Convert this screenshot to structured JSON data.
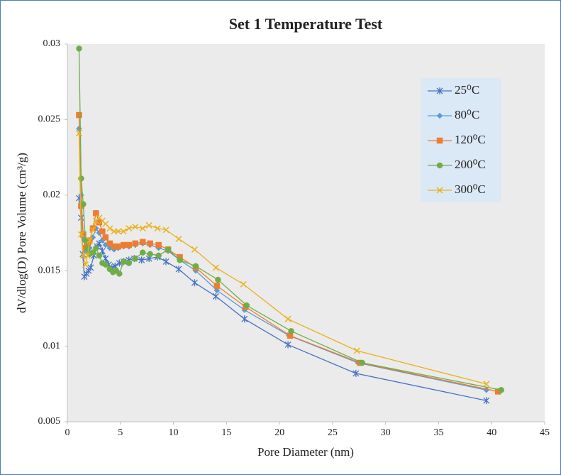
{
  "chart_data": {
    "type": "line",
    "title": "Set 1 Temperature Test",
    "x_label": "Pore Diameter (nm)",
    "y_label": "dV/dlog(D) Pore Volume (cm³/g)",
    "xlim": [
      0,
      45
    ],
    "xticks": [
      0,
      5,
      10,
      15,
      20,
      25,
      30,
      35,
      40,
      45
    ],
    "ylim": [
      0.005,
      0.03
    ],
    "yticks": [
      0.005,
      0.01,
      0.015,
      0.02,
      0.025,
      0.03
    ],
    "grid": false,
    "legend": "upper right",
    "series": [
      {
        "name": "25⁰C",
        "color": "#4472c4",
        "marker": "asterisk",
        "x": [
          1.1,
          1.3,
          1.45,
          1.6,
          1.8,
          2.0,
          2.2,
          2.5,
          2.8,
          3.0,
          3.3,
          3.6,
          3.9,
          4.2,
          4.5,
          4.9,
          5.3,
          5.8,
          6.3,
          7.0,
          7.7,
          8.5,
          9.3,
          10.5,
          12.0,
          14.0,
          16.7,
          20.8,
          27.2,
          39.5
        ],
        "values": [
          0.0198,
          0.0185,
          0.0161,
          0.0146,
          0.0148,
          0.015,
          0.0152,
          0.016,
          0.0166,
          0.0168,
          0.0163,
          0.0158,
          0.0154,
          0.0152,
          0.0153,
          0.0155,
          0.0156,
          0.0157,
          0.0158,
          0.0157,
          0.0158,
          0.0159,
          0.0156,
          0.0151,
          0.0142,
          0.0133,
          0.0118,
          0.0101,
          0.0082,
          0.0064
        ]
      },
      {
        "name": "80⁰C",
        "color": "#5b9bd5",
        "marker": "diamond",
        "x": [
          1.1,
          1.3,
          1.5,
          1.7,
          1.9,
          2.1,
          2.4,
          2.7,
          3.0,
          3.3,
          3.6,
          4.0,
          4.4,
          4.8,
          5.3,
          5.8,
          6.4,
          7.1,
          7.8,
          8.6,
          9.5,
          10.6,
          12.1,
          14.1,
          16.7,
          20.9,
          27.4,
          39.5
        ],
        "values": [
          0.0244,
          0.02,
          0.0172,
          0.0163,
          0.0163,
          0.0165,
          0.0172,
          0.0178,
          0.0175,
          0.017,
          0.0167,
          0.0165,
          0.0164,
          0.0165,
          0.0166,
          0.0166,
          0.0167,
          0.0168,
          0.0167,
          0.0165,
          0.0163,
          0.0157,
          0.015,
          0.0137,
          0.0124,
          0.0107,
          0.0089,
          0.0071
        ]
      },
      {
        "name": "120⁰C",
        "color": "#ed7d31",
        "marker": "square",
        "x": [
          1.1,
          1.3,
          1.5,
          1.7,
          1.9,
          2.1,
          2.4,
          2.7,
          3.0,
          3.3,
          3.6,
          4.0,
          4.4,
          4.8,
          5.3,
          5.8,
          6.4,
          7.1,
          7.8,
          8.6,
          9.5,
          10.6,
          12.1,
          14.1,
          16.8,
          21.0,
          27.6,
          40.6
        ],
        "values": [
          0.0253,
          0.0193,
          0.0174,
          0.0165,
          0.0167,
          0.017,
          0.0178,
          0.0188,
          0.0182,
          0.0176,
          0.0172,
          0.0168,
          0.0166,
          0.0166,
          0.0167,
          0.0167,
          0.0168,
          0.0169,
          0.0168,
          0.0167,
          0.0164,
          0.0159,
          0.0152,
          0.014,
          0.0126,
          0.0107,
          0.0089,
          0.007
        ]
      },
      {
        "name": "200⁰C",
        "color": "#70ad47",
        "marker": "circle",
        "x": [
          1.1,
          1.3,
          1.5,
          1.7,
          1.9,
          2.1,
          2.4,
          2.7,
          3.0,
          3.3,
          3.6,
          4.0,
          4.3,
          4.6,
          4.9,
          5.3,
          5.8,
          6.4,
          7.1,
          7.8,
          8.6,
          9.5,
          10.6,
          12.1,
          14.2,
          16.9,
          21.1,
          27.8,
          40.9
        ],
        "values": [
          0.0297,
          0.0211,
          0.0194,
          0.017,
          0.0165,
          0.0161,
          0.0162,
          0.0165,
          0.016,
          0.0155,
          0.0154,
          0.0151,
          0.0149,
          0.015,
          0.0148,
          0.0156,
          0.0155,
          0.0158,
          0.0162,
          0.0161,
          0.016,
          0.0164,
          0.0157,
          0.0153,
          0.0144,
          0.0127,
          0.011,
          0.0089,
          0.0071
        ]
      },
      {
        "name": "300⁰C",
        "color": "#e8b21c",
        "marker": "x",
        "x": [
          1.1,
          1.3,
          1.5,
          1.7,
          1.9,
          2.1,
          2.4,
          2.7,
          3.0,
          3.3,
          3.6,
          4.0,
          4.4,
          4.8,
          5.3,
          5.8,
          6.4,
          7.1,
          7.7,
          8.5,
          9.3,
          10.5,
          12.0,
          14.0,
          16.6,
          20.8,
          27.3,
          39.5
        ],
        "values": [
          0.0241,
          0.0174,
          0.016,
          0.0154,
          0.016,
          0.017,
          0.0177,
          0.0183,
          0.0185,
          0.0183,
          0.0181,
          0.0178,
          0.0176,
          0.0176,
          0.0176,
          0.0178,
          0.0179,
          0.0178,
          0.018,
          0.0178,
          0.0177,
          0.0171,
          0.0164,
          0.0152,
          0.0141,
          0.0118,
          0.0097,
          0.0075
        ]
      }
    ]
  }
}
